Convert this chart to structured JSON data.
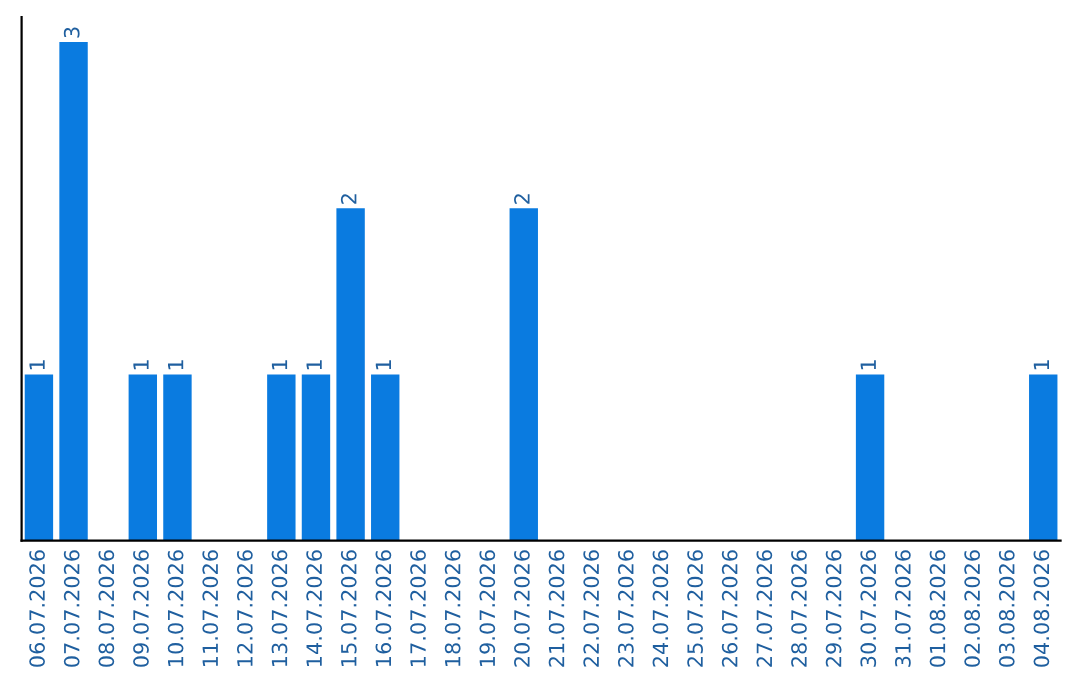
{
  "chart_data": {
    "type": "bar",
    "categories": [
      "06.07.2026",
      "07.07.2026",
      "08.07.2026",
      "09.07.2026",
      "10.07.2026",
      "11.07.2026",
      "12.07.2026",
      "13.07.2026",
      "14.07.2026",
      "15.07.2026",
      "16.07.2026",
      "17.07.2026",
      "18.07.2026",
      "19.07.2026",
      "20.07.2026",
      "21.07.2026",
      "22.07.2026",
      "23.07.2026",
      "24.07.2026",
      "25.07.2026",
      "26.07.2026",
      "27.07.2026",
      "28.07.2026",
      "29.07.2026",
      "30.07.2026",
      "31.07.2026",
      "01.08.2026",
      "02.08.2026",
      "03.08.2026",
      "04.08.2026"
    ],
    "values": [
      1,
      3,
      0,
      1,
      1,
      0,
      0,
      1,
      1,
      2,
      1,
      0,
      0,
      0,
      2,
      0,
      0,
      0,
      0,
      0,
      0,
      0,
      0,
      0,
      1,
      0,
      0,
      0,
      0,
      1
    ],
    "value_labels": [
      "1",
      "3",
      null,
      "1",
      "1",
      null,
      null,
      "1",
      "1",
      "2",
      "1",
      null,
      null,
      null,
      "2",
      null,
      null,
      null,
      null,
      null,
      null,
      null,
      null,
      null,
      "1",
      null,
      null,
      null,
      null,
      "1"
    ],
    "color": "#0a7be0",
    "tick_labels": "x",
    "grid": false,
    "legend": false
  }
}
